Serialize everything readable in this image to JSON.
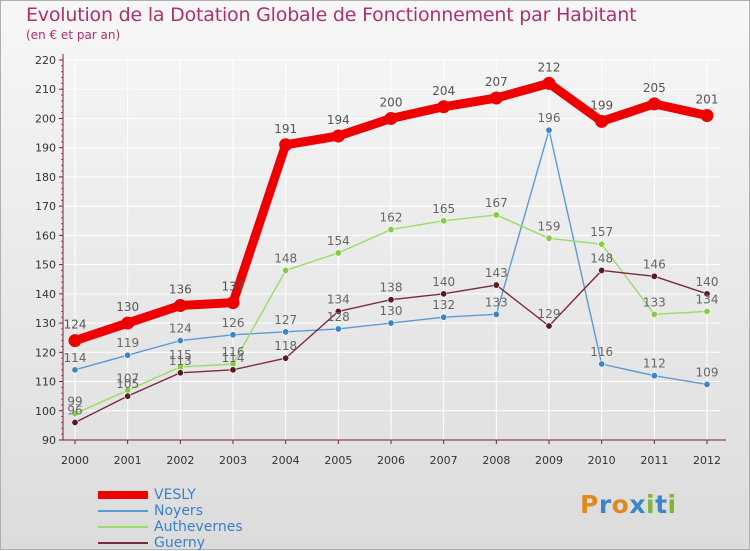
{
  "title": "Evolution de la Dotation Globale de Fonctionnement par Habitant",
  "subtitle": "(en € et par an)",
  "logo": "Proxiti",
  "colors": {
    "title": "#b0306a",
    "axis": "#7a1f3c",
    "legend_text": "#3a7fcb",
    "label_text": "#666666"
  },
  "chart_data": {
    "type": "line",
    "title": "Evolution de la Dotation Globale de Fonctionnement par Habitant",
    "subtitle": "(en € et par an)",
    "xlabel": "",
    "ylabel": "",
    "ylim": [
      90,
      220
    ],
    "yticks": [
      90,
      100,
      110,
      120,
      130,
      140,
      150,
      160,
      170,
      180,
      190,
      200,
      210,
      220
    ],
    "grid": true,
    "legend_position": "bottom-left",
    "x": [
      "2000",
      "2001",
      "2002",
      "2003",
      "2004",
      "2005",
      "2006",
      "2007",
      "2008",
      "2009",
      "2010",
      "2011",
      "2012"
    ],
    "series": [
      {
        "name": "VESLY",
        "color": "#ee0000",
        "width": "thick",
        "label_color": "#555555",
        "values": [
          124,
          130,
          136,
          137,
          191,
          194,
          200,
          204,
          207,
          212,
          199,
          205,
          201
        ]
      },
      {
        "name": "Noyers",
        "color": "#5b9bd5",
        "marker_color": "#3a86c8",
        "width": "thin",
        "label_color": "#666666",
        "values": [
          114,
          119,
          124,
          126,
          127,
          128,
          130,
          132,
          133,
          196,
          116,
          112,
          109
        ]
      },
      {
        "name": "Authevernes",
        "color": "#99dd66",
        "marker_color": "#88cc44",
        "width": "thin",
        "label_color": "#666666",
        "values": [
          99,
          107,
          115,
          116,
          148,
          154,
          162,
          165,
          167,
          159,
          157,
          133,
          134
        ]
      },
      {
        "name": "Guerny",
        "color": "#7a2a3a",
        "marker_color": "#5a1a22",
        "width": "thin",
        "label_color": "#666666",
        "values": [
          96,
          105,
          113,
          114,
          118,
          134,
          138,
          140,
          143,
          129,
          148,
          146,
          140
        ]
      }
    ]
  }
}
